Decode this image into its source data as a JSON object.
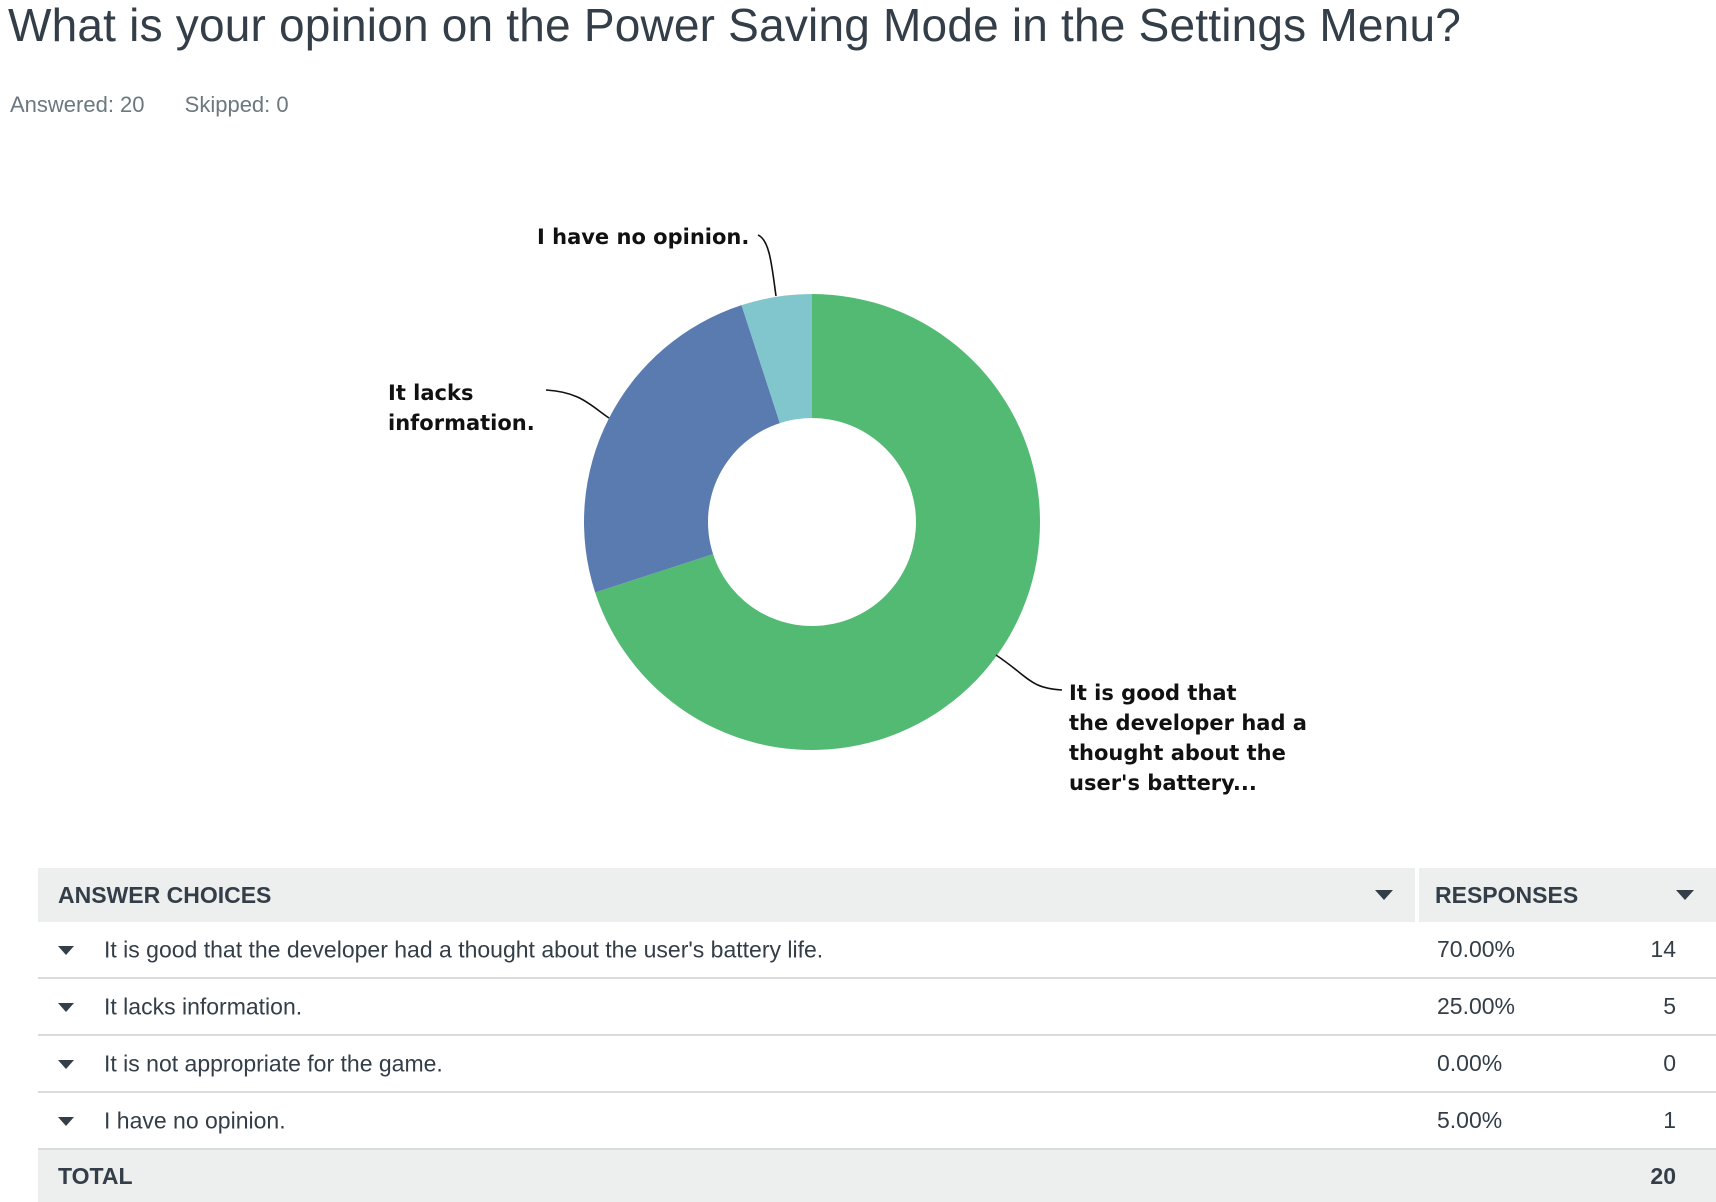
{
  "question": {
    "title": "What is your opinion on the Power Saving Mode in the Settings Menu?",
    "answered": "Answered: 20",
    "skipped": "Skipped: 0"
  },
  "chart_data": {
    "type": "pie",
    "style": "donut",
    "slices": [
      {
        "label": "It is good that the developer had a thought about the user's battery...",
        "label_lines": [
          "It is good that",
          "the developer had a",
          "thought about the",
          "user's battery..."
        ],
        "value": 70,
        "color": "#53ba73"
      },
      {
        "label": "It lacks information.",
        "label_lines": [
          "It lacks",
          "information."
        ],
        "value": 25,
        "color": "#597bb0"
      },
      {
        "label": "It is not appropriate for the game.",
        "label_lines": [],
        "value": 0,
        "color": "#e8a14f"
      },
      {
        "label": "I have no opinion.",
        "label_lines": [
          "I have no opinion."
        ],
        "value": 5,
        "color": "#80c6cc"
      }
    ]
  },
  "table": {
    "headers": {
      "choices": "ANSWER CHOICES",
      "responses": "RESPONSES"
    },
    "rows": [
      {
        "choice": "It is good that the developer had a thought about the user's battery life.",
        "percent": "70.00%",
        "count": "14"
      },
      {
        "choice": "It lacks information.",
        "percent": "25.00%",
        "count": "5"
      },
      {
        "choice": "It is not appropriate for the game.",
        "percent": "0.00%",
        "count": "0"
      },
      {
        "choice": "I have no opinion.",
        "percent": "5.00%",
        "count": "1"
      }
    ],
    "total": {
      "label": "TOTAL",
      "count": "20"
    }
  }
}
